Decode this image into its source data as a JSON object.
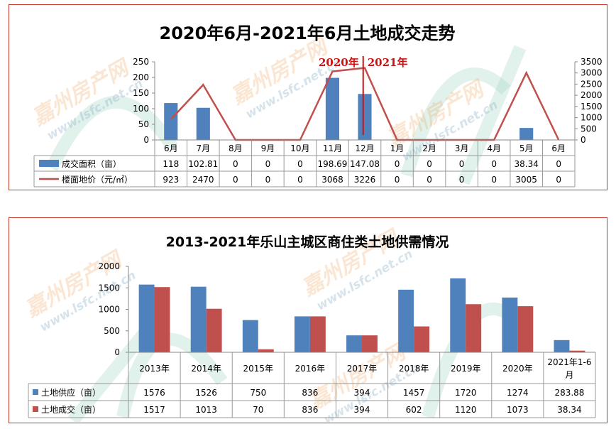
{
  "watermark": {
    "cn": "嘉州房产网",
    "url": "www.lsfc.net.cn"
  },
  "chart_data": [
    {
      "type": "bar+line",
      "title": "2020年6月-2021年6月土地成交走势",
      "categories": [
        "6月",
        "7月",
        "8月",
        "9月",
        "10月",
        "11月",
        "12月",
        "1月",
        "2月",
        "3月",
        "4月",
        "5月",
        "6月"
      ],
      "series": [
        {
          "name": "成交面积（亩）",
          "type": "bar",
          "axis": "left",
          "color": "#4f81bd",
          "values": [
            118,
            102.81,
            0,
            0,
            0,
            198.69,
            147.08,
            0,
            0,
            0,
            0,
            38.34,
            0
          ]
        },
        {
          "name": "楼面地价（元/㎡）",
          "type": "line",
          "axis": "right",
          "color": "#c0504d",
          "values": [
            923,
            2470,
            0,
            0,
            0,
            3068,
            3226,
            0,
            0,
            0,
            0,
            3005,
            0
          ]
        }
      ],
      "y_left": {
        "min": 0,
        "max": 250,
        "ticks": [
          0,
          50,
          100,
          150,
          200,
          250
        ]
      },
      "y_right": {
        "min": 0,
        "max": 3500,
        "ticks": [
          0,
          500,
          1000,
          1500,
          2000,
          2500,
          3000,
          3500
        ]
      },
      "table_values": {
        "s0": [
          "118",
          "102.81",
          "0",
          "0",
          "0",
          "198.69",
          "147.08",
          "0",
          "0",
          "0",
          "0",
          "38.34",
          "0"
        ],
        "s1": [
          "923",
          "2470",
          "0",
          "0",
          "0",
          "3068",
          "3226",
          "0",
          "0",
          "0",
          "0",
          "3005",
          "0"
        ]
      },
      "annotations": {
        "left": "2020年",
        "right": "2021年",
        "divider_after_category_index": 6
      }
    },
    {
      "type": "bar",
      "title": "2013-2021年乐山主城区商住类土地供需情况",
      "categories": [
        "2013年",
        "2014年",
        "2015年",
        "2016年",
        "2017年",
        "2018年",
        "2019年",
        "2020年",
        "2021年1-6月"
      ],
      "series": [
        {
          "name": "土地供应（亩）",
          "color": "#4f81bd",
          "values": [
            1576,
            1526,
            750,
            836,
            394,
            1457,
            1720,
            1274,
            283.88
          ]
        },
        {
          "name": "土地成交（亩）",
          "color": "#c0504d",
          "values": [
            1517,
            1013,
            70,
            836,
            394,
            602,
            1120,
            1073,
            38.34
          ]
        }
      ],
      "ylim": [
        0,
        2000
      ],
      "y_ticks": [
        0,
        500,
        1000,
        1500,
        2000
      ],
      "table_values": {
        "s0": [
          "1576",
          "1526",
          "750",
          "836",
          "394",
          "1457",
          "1720",
          "1274",
          "283.88"
        ],
        "s1": [
          "1517",
          "1013",
          "70",
          "836",
          "394",
          "602",
          "1120",
          "1073",
          "38.34"
        ]
      }
    }
  ]
}
